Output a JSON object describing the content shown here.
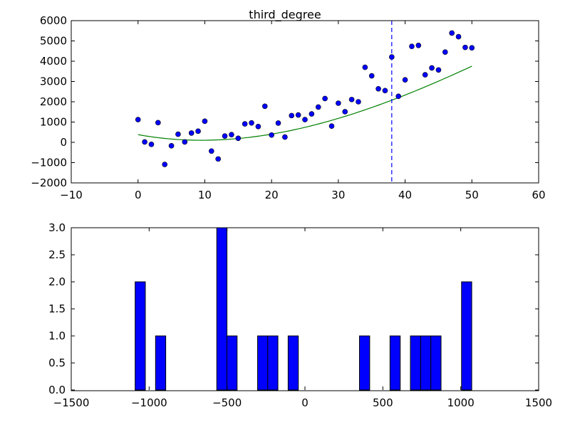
{
  "chart_data": [
    {
      "type": "scatter",
      "title": "third_degree",
      "xlabel": "",
      "ylabel": "",
      "xlim": [
        -10,
        60
      ],
      "ylim": [
        -2000,
        6000
      ],
      "xticks": [
        -10,
        0,
        10,
        20,
        30,
        40,
        50,
        60
      ],
      "yticks": [
        -2000,
        -1000,
        0,
        1000,
        2000,
        3000,
        4000,
        5000,
        6000
      ],
      "grid": false,
      "points": {
        "color": "#0000ff",
        "x": [
          0,
          1,
          2,
          3,
          4,
          5,
          6,
          7,
          8,
          9,
          10,
          11,
          12,
          13,
          14,
          15,
          16,
          17,
          18,
          19,
          20,
          21,
          22,
          23,
          24,
          25,
          26,
          27,
          28,
          29,
          30,
          31,
          32,
          33,
          34,
          35,
          36,
          37,
          38,
          39,
          40,
          41,
          42,
          43,
          44,
          45,
          46,
          47,
          48,
          49,
          50
        ],
        "y": [
          1120,
          20,
          -100,
          970,
          -1090,
          -170,
          400,
          20,
          460,
          550,
          1040,
          -430,
          -820,
          310,
          380,
          200,
          910,
          960,
          780,
          1780,
          360,
          950,
          260,
          1320,
          1350,
          1120,
          1400,
          1740,
          2160,
          800,
          1930,
          1510,
          2110,
          2000,
          3700,
          3280,
          2640,
          2550,
          4210,
          2270,
          3080,
          4730,
          4780,
          3330,
          3670,
          3570,
          4450,
          5390,
          5210,
          4680,
          4660
        ]
      },
      "fit_line": {
        "color": "#008000",
        "type": "third-degree polynomial fit",
        "coefficients": [
          380,
          -60,
          3.4,
          -0.017
        ],
        "x_range": [
          0,
          50
        ]
      },
      "vline": {
        "x": 38,
        "color": "#0000ff",
        "style": "dashed"
      }
    },
    {
      "type": "bar",
      "title": "",
      "xlabel": "",
      "ylabel": "",
      "xlim": [
        -1500,
        1500
      ],
      "ylim": [
        0,
        3
      ],
      "xticks": [
        -1500,
        -1000,
        -500,
        0,
        500,
        1000,
        1500
      ],
      "yticks": [
        0,
        0.5,
        1.0,
        1.5,
        2.0,
        2.5,
        3.0
      ],
      "ytick_labels": [
        "0.0",
        "0.5",
        "1.0",
        "1.5",
        "2.0",
        "2.5",
        "3.0"
      ],
      "grid": false,
      "color": "#0000ff",
      "bin_width": 65.5,
      "bins_left": [
        -1090,
        -959,
        -566,
        -501,
        -304,
        -239,
        -108,
        350,
        546,
        677,
        743,
        808,
        1005
      ],
      "counts": [
        2,
        1,
        3,
        1,
        1,
        1,
        1,
        1,
        1,
        1,
        1,
        1,
        2
      ]
    }
  ]
}
